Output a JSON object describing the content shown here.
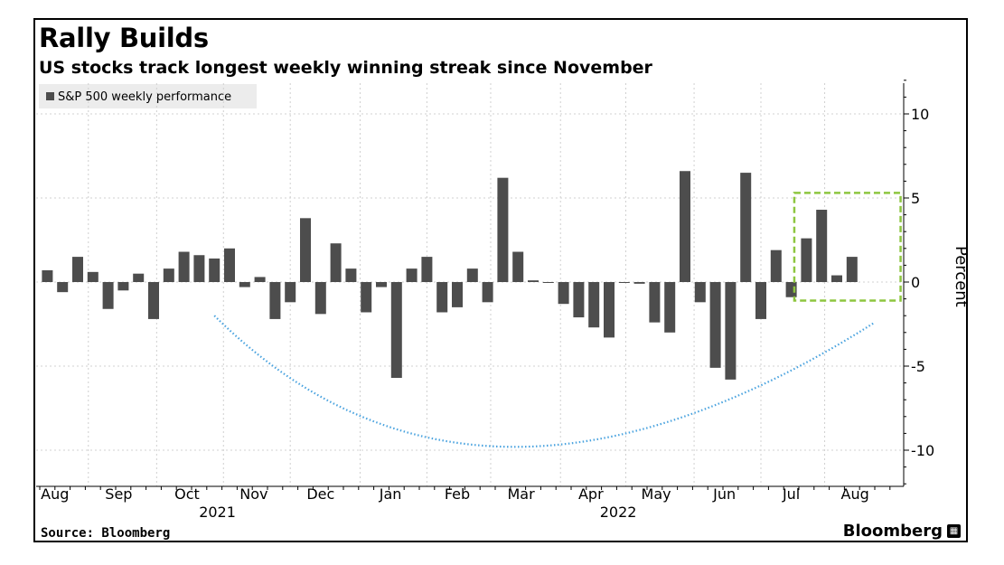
{
  "title": "Rally Builds",
  "subtitle": "US stocks track longest weekly winning streak since November",
  "source": "Source: Bloomberg",
  "brand": "Bloomberg",
  "colors": {
    "bar": "#4d4d4d",
    "trend": "#4aa3df",
    "highlight": "#8dc63f",
    "grid": "#d0d0d0",
    "legend_bg": "#ececec"
  },
  "chart_data": {
    "type": "bar",
    "title": "Rally Builds",
    "subtitle": "US stocks track longest weekly winning streak since November",
    "legend": [
      "S&P 500 weekly performance"
    ],
    "ylabel": "Percent",
    "ylim": [
      -12,
      12
    ],
    "yticks": [
      10,
      5,
      0,
      -5,
      -10
    ],
    "x_start_week": 0,
    "x_end_week": 57,
    "values": [
      0.7,
      -0.6,
      1.5,
      0.6,
      -1.6,
      -0.5,
      0.5,
      -2.2,
      0.8,
      1.8,
      1.6,
      1.4,
      2.0,
      -0.3,
      0.3,
      -2.2,
      -1.2,
      3.8,
      -1.9,
      2.3,
      0.8,
      -1.8,
      -0.3,
      -5.7,
      0.8,
      1.5,
      -1.8,
      -1.5,
      0.8,
      -1.2,
      6.2,
      1.8,
      0.1,
      0.0,
      -1.3,
      -2.1,
      -2.7,
      -3.3,
      0.0,
      -0.1,
      -2.4,
      -3.0,
      6.6,
      -1.2,
      -5.1,
      -5.8,
      6.5,
      -2.2,
      1.9,
      -0.9,
      2.6,
      4.3,
      0.4,
      1.5
    ],
    "month_labels": [
      {
        "label": "Aug",
        "week": 0.5
      },
      {
        "label": "Sep",
        "week": 4.7
      },
      {
        "label": "Oct",
        "week": 9.2
      },
      {
        "label": "Nov",
        "week": 13.6
      },
      {
        "label": "Dec",
        "week": 18.0
      },
      {
        "label": "Jan",
        "week": 22.6
      },
      {
        "label": "Feb",
        "week": 27.0
      },
      {
        "label": "Mar",
        "week": 31.2
      },
      {
        "label": "Apr",
        "week": 35.8
      },
      {
        "label": "May",
        "week": 40.1
      },
      {
        "label": "Jun",
        "week": 44.6
      },
      {
        "label": "Jul",
        "week": 49.0
      },
      {
        "label": "Aug",
        "week": 53.2
      }
    ],
    "year_labels": [
      {
        "label": "2021",
        "week": 11.2
      },
      {
        "label": "2022",
        "week": 37.6
      }
    ],
    "annotations": [
      {
        "type": "trend-arc",
        "start_week": 11.0,
        "start_value": -2.0,
        "mid_week": 30.5,
        "mid_value": -9.8,
        "end_week": 54.5,
        "end_value": -2.4
      },
      {
        "type": "highlight-box",
        "week_from": 49.2,
        "week_to": 56.2,
        "value_from": -1.1,
        "value_to": 5.3
      }
    ]
  }
}
